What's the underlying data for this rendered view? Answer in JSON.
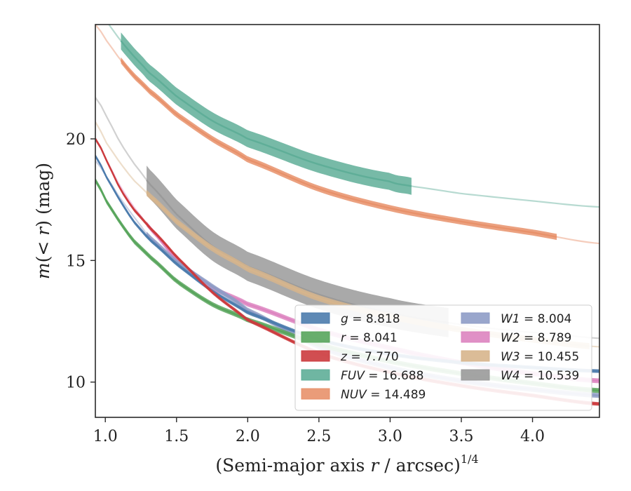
{
  "chart_data": {
    "type": "line",
    "title": "",
    "xlabel": "(Semi-major axis r / arcsec)^1/4",
    "xlabel_parts": {
      "prefix": "(Semi-major axis ",
      "var": "r",
      "suffix": " / arcsec)",
      "power": "1/4"
    },
    "ylabel": "m(< r) (mag)",
    "ylabel_parts": {
      "m": "m",
      "open": "(",
      "lt": "< ",
      "r": "r",
      "close": ") (mag)"
    },
    "xlim": [
      0.93,
      4.47
    ],
    "ylim": [
      24.7,
      8.55
    ],
    "y_inverted": true,
    "xticks": [
      "1.0",
      "1.5",
      "2.0",
      "2.5",
      "3.0",
      "3.5",
      "4.0"
    ],
    "yticks": [
      "10",
      "15",
      "20"
    ],
    "legend_position": "lower-right",
    "legend": [
      {
        "band": "g",
        "value": "8.818"
      },
      {
        "band": "r",
        "value": "8.041"
      },
      {
        "band": "z",
        "value": "7.770"
      },
      {
        "band": "FUV",
        "value": "16.688"
      },
      {
        "band": "NUV",
        "value": "14.489"
      },
      {
        "band": "W1",
        "value": "8.004"
      },
      {
        "band": "W2",
        "value": "8.789"
      },
      {
        "band": "W3",
        "value": "10.455"
      },
      {
        "band": "W4",
        "value": "10.539"
      }
    ],
    "series": [
      {
        "name": "W4",
        "color": "#9a9a9a",
        "band_width": 1.2,
        "x": [
          0.93,
          1.0,
          1.1,
          1.2,
          1.3,
          1.5,
          1.75,
          2.0,
          2.5,
          3.0,
          3.4,
          3.8,
          4.2,
          4.47
        ],
        "y": [
          21.7,
          21.0,
          19.9,
          19.0,
          18.2,
          16.9,
          15.6,
          14.75,
          13.6,
          12.85,
          12.45,
          12.15,
          11.95,
          11.8
        ],
        "solid_from": 1.29,
        "solid_to": 3.41
      },
      {
        "name": "W3",
        "color": "#d7b58c",
        "band_width": 0.25,
        "x": [
          0.93,
          1.0,
          1.1,
          1.2,
          1.3,
          1.5,
          1.75,
          2.0,
          2.5,
          3.0,
          3.5,
          4.0,
          4.47
        ],
        "y": [
          20.7,
          19.9,
          19.05,
          18.3,
          17.7,
          16.6,
          15.5,
          14.65,
          13.45,
          12.7,
          12.15,
          11.75,
          11.45
        ],
        "solid_from": 1.29,
        "solid_to": 4.4
      },
      {
        "name": "FUV",
        "color": "#5fae98",
        "band_width": 0.7,
        "x": [
          0.93,
          1.0,
          1.1,
          1.2,
          1.3,
          1.5,
          1.75,
          2.0,
          2.5,
          3.0,
          3.15,
          3.5,
          4.0,
          4.47
        ],
        "y": [
          25.6,
          24.9,
          24.1,
          23.4,
          22.75,
          21.75,
          20.75,
          20.0,
          18.95,
          18.25,
          18.05,
          17.75,
          17.45,
          17.2
        ],
        "solid_from": 1.11,
        "solid_to": 3.15
      },
      {
        "name": "NUV",
        "color": "#e8916a",
        "band_width": 0.25,
        "x": [
          0.93,
          1.0,
          1.1,
          1.2,
          1.3,
          1.5,
          1.75,
          2.0,
          2.5,
          3.0,
          3.5,
          4.0,
          4.47
        ],
        "y": [
          24.7,
          24.1,
          23.3,
          22.6,
          22.0,
          21.0,
          20.0,
          19.15,
          17.95,
          17.15,
          16.6,
          16.15,
          15.7
        ],
        "solid_from": 1.11,
        "solid_to": 4.17
      },
      {
        "name": "W2",
        "color": "#dd84c0",
        "band_width": 0.2,
        "x": [
          0.93,
          1.0,
          1.1,
          1.2,
          1.3,
          1.5,
          1.75,
          2.0,
          2.5,
          3.0,
          3.5,
          4.0,
          4.47
        ],
        "y": [
          20.0,
          19.2,
          18.1,
          17.2,
          16.4,
          15.05,
          13.9,
          13.2,
          12.15,
          11.4,
          10.8,
          10.35,
          10.05
        ],
        "solid_from": 1.29,
        "solid_to": 4.47
      },
      {
        "name": "W1",
        "color": "#8e9cc6",
        "band_width": 0.2,
        "x": [
          0.93,
          1.0,
          1.1,
          1.2,
          1.3,
          1.5,
          1.75,
          2.0,
          2.5,
          3.0,
          3.5,
          4.0,
          4.47
        ],
        "y": [
          19.1,
          18.5,
          17.6,
          16.8,
          16.0,
          14.95,
          13.95,
          12.95,
          11.45,
          10.6,
          10.05,
          9.7,
          9.45
        ],
        "solid_from": 1.29,
        "solid_to": 4.47
      },
      {
        "name": "g",
        "color": "#4c7cad",
        "band_width": 0.15,
        "x": [
          0.93,
          1.0,
          1.1,
          1.2,
          1.3,
          1.5,
          1.75,
          2.0,
          2.5,
          3.0,
          3.5,
          4.0,
          4.47
        ],
        "y": [
          19.3,
          18.5,
          17.5,
          16.6,
          15.9,
          14.85,
          13.75,
          12.85,
          11.75,
          11.15,
          10.8,
          10.6,
          10.45
        ],
        "solid_from": 0.93,
        "solid_to": 4.47
      },
      {
        "name": "r",
        "color": "#58a55c",
        "band_width": 0.2,
        "x": [
          0.93,
          1.0,
          1.1,
          1.2,
          1.3,
          1.5,
          1.75,
          2.0,
          2.5,
          3.0,
          3.5,
          4.0,
          4.47
        ],
        "y": [
          18.3,
          17.5,
          16.6,
          15.8,
          15.2,
          14.15,
          13.2,
          12.55,
          11.55,
          10.85,
          10.35,
          9.95,
          9.65
        ],
        "solid_from": 0.93,
        "solid_to": 4.47
      },
      {
        "name": "z",
        "color": "#cc3b3e",
        "band_width": 0.15,
        "x": [
          0.93,
          1.0,
          1.1,
          1.2,
          1.3,
          1.5,
          1.75,
          2.0,
          2.5,
          3.0,
          3.5,
          4.0,
          4.47
        ],
        "y": [
          20.0,
          19.2,
          18.0,
          17.1,
          16.4,
          15.15,
          13.7,
          12.55,
          11.2,
          10.4,
          9.85,
          9.45,
          9.1
        ],
        "solid_from": 0.93,
        "solid_to": 4.47
      }
    ]
  }
}
